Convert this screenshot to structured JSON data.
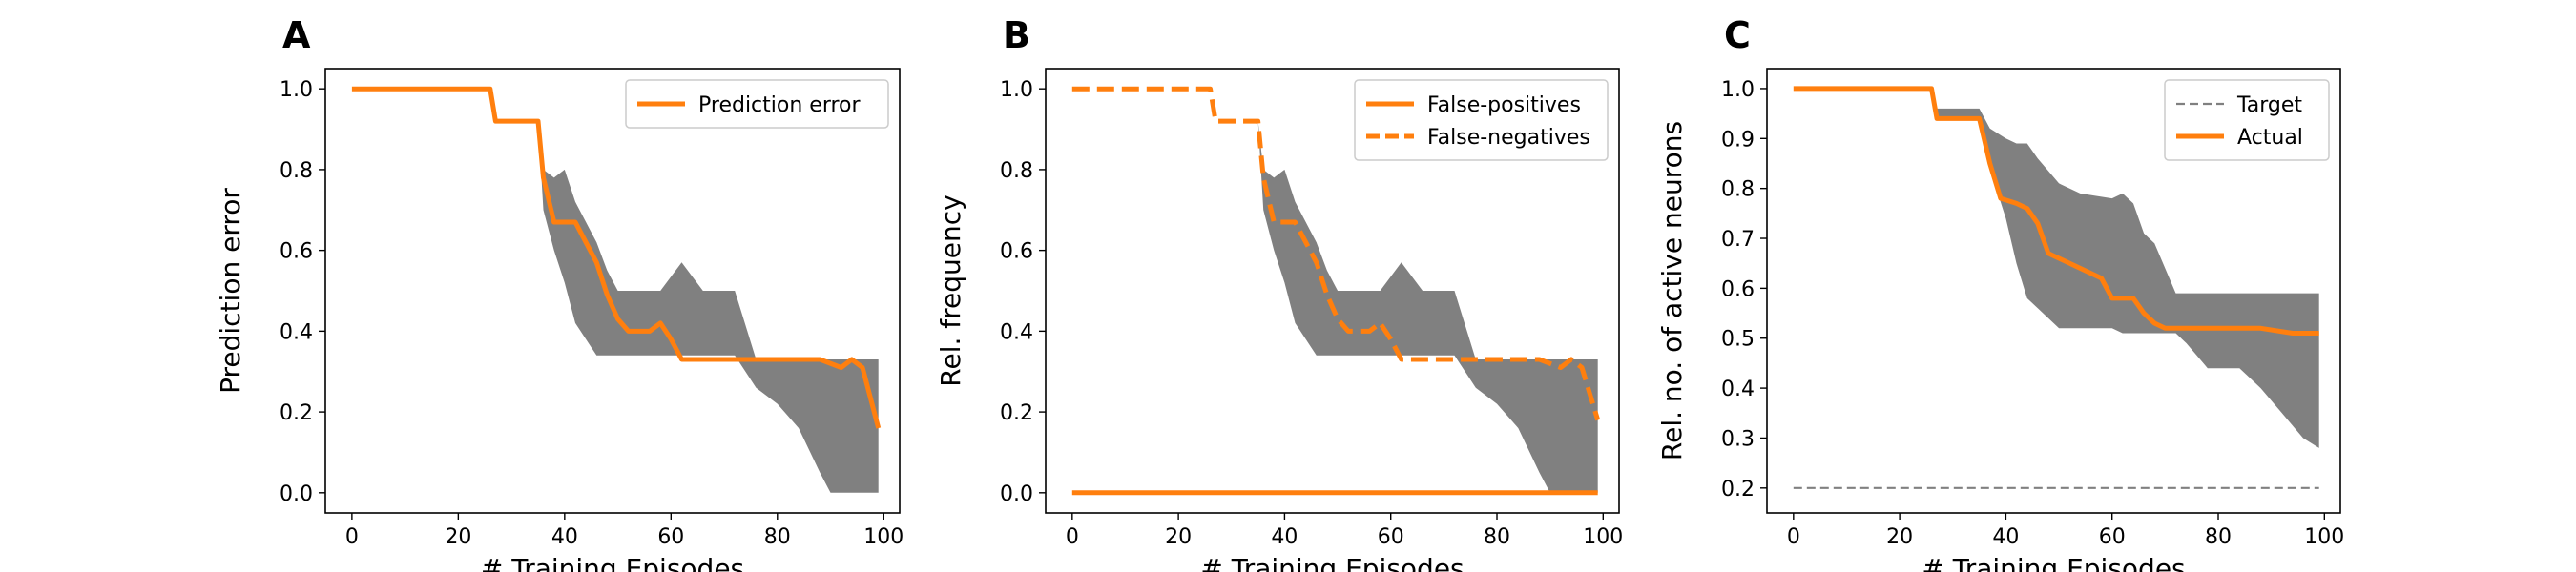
{
  "colors": {
    "line": "#ff7f0e",
    "band": "#808080",
    "target": "#808080"
  },
  "chart_data": [
    {
      "panel_label": "A",
      "type": "line",
      "xlabel": "# Training Episodes",
      "ylabel": "Prediction error",
      "xlim": [
        -5,
        103
      ],
      "ylim": [
        -0.05,
        1.05
      ],
      "xticks": [
        0,
        20,
        40,
        60,
        80,
        100
      ],
      "yticks": [
        0.0,
        0.2,
        0.4,
        0.6,
        0.8,
        1.0
      ],
      "ytick_labels": [
        "0.0",
        "0.2",
        "0.4",
        "0.6",
        "0.8",
        "1.0"
      ],
      "legend_position": "upper right",
      "band": {
        "x": [
          0,
          26,
          27,
          35,
          36,
          38,
          40,
          42,
          46,
          48,
          50,
          54,
          58,
          62,
          66,
          72,
          76,
          80,
          84,
          88,
          90,
          94,
          98,
          99
        ],
        "lower": [
          1.0,
          1.0,
          0.92,
          0.92,
          0.7,
          0.6,
          0.52,
          0.42,
          0.34,
          0.34,
          0.34,
          0.34,
          0.34,
          0.34,
          0.34,
          0.34,
          0.26,
          0.22,
          0.16,
          0.05,
          0.0,
          0.0,
          0.0,
          0.0
        ],
        "upper": [
          1.0,
          1.0,
          0.92,
          0.92,
          0.8,
          0.78,
          0.8,
          0.72,
          0.62,
          0.55,
          0.5,
          0.5,
          0.5,
          0.57,
          0.5,
          0.5,
          0.33,
          0.33,
          0.33,
          0.33,
          0.33,
          0.33,
          0.33,
          0.33
        ]
      },
      "series": [
        {
          "name": "Prediction error",
          "style": "solid",
          "x": [
            0,
            26,
            27,
            35,
            36,
            38,
            42,
            44,
            46,
            48,
            50,
            52,
            56,
            58,
            60,
            62,
            88,
            92,
            94,
            96,
            99
          ],
          "y": [
            1.0,
            1.0,
            0.92,
            0.92,
            0.78,
            0.67,
            0.67,
            0.62,
            0.57,
            0.49,
            0.43,
            0.4,
            0.4,
            0.42,
            0.38,
            0.33,
            0.33,
            0.31,
            0.33,
            0.31,
            0.16
          ]
        }
      ]
    },
    {
      "panel_label": "B",
      "type": "line",
      "xlabel": "# Training Episodes",
      "ylabel": "Rel. frequency",
      "xlim": [
        -5,
        103
      ],
      "ylim": [
        -0.05,
        1.05
      ],
      "xticks": [
        0,
        20,
        40,
        60,
        80,
        100
      ],
      "yticks": [
        0.0,
        0.2,
        0.4,
        0.6,
        0.8,
        1.0
      ],
      "ytick_labels": [
        "0.0",
        "0.2",
        "0.4",
        "0.6",
        "0.8",
        "1.0"
      ],
      "legend_position": "upper right",
      "band": {
        "x": [
          0,
          26,
          27,
          35,
          36,
          38,
          40,
          42,
          46,
          48,
          50,
          54,
          58,
          62,
          66,
          72,
          76,
          80,
          84,
          88,
          90,
          94,
          98,
          99
        ],
        "lower": [
          1.0,
          1.0,
          0.92,
          0.92,
          0.7,
          0.6,
          0.52,
          0.42,
          0.34,
          0.34,
          0.34,
          0.34,
          0.34,
          0.34,
          0.34,
          0.34,
          0.26,
          0.22,
          0.16,
          0.05,
          0.0,
          0.0,
          0.0,
          0.0
        ],
        "upper": [
          1.0,
          1.0,
          0.92,
          0.92,
          0.8,
          0.78,
          0.8,
          0.72,
          0.62,
          0.55,
          0.5,
          0.5,
          0.5,
          0.57,
          0.5,
          0.5,
          0.33,
          0.33,
          0.33,
          0.33,
          0.33,
          0.33,
          0.33,
          0.33
        ]
      },
      "series": [
        {
          "name": "False-positives",
          "style": "solid",
          "x": [
            0,
            99
          ],
          "y": [
            0.0,
            0.0
          ]
        },
        {
          "name": "False-negatives",
          "style": "dashed",
          "x": [
            0,
            26,
            27,
            35,
            36,
            38,
            42,
            44,
            46,
            48,
            50,
            52,
            56,
            58,
            60,
            62,
            88,
            92,
            94,
            96,
            99
          ],
          "y": [
            1.0,
            1.0,
            0.92,
            0.92,
            0.78,
            0.67,
            0.67,
            0.62,
            0.57,
            0.49,
            0.43,
            0.4,
            0.4,
            0.42,
            0.38,
            0.33,
            0.33,
            0.31,
            0.33,
            0.31,
            0.18
          ]
        }
      ]
    },
    {
      "panel_label": "C",
      "type": "line",
      "xlabel": "# Training Episodes",
      "ylabel": "Rel. no. of active neurons",
      "xlim": [
        -5,
        103
      ],
      "ylim": [
        0.15,
        1.04
      ],
      "xticks": [
        0,
        20,
        40,
        60,
        80,
        100
      ],
      "yticks": [
        0.2,
        0.3,
        0.4,
        0.5,
        0.6,
        0.7,
        0.8,
        0.9,
        1.0
      ],
      "ytick_labels": [
        "0.2",
        "0.3",
        "0.4",
        "0.5",
        "0.6",
        "0.7",
        "0.8",
        "0.9",
        "1.0"
      ],
      "legend_position": "upper right",
      "band": {
        "x": [
          0,
          26,
          27,
          35,
          37,
          40,
          42,
          44,
          46,
          50,
          54,
          60,
          62,
          64,
          66,
          68,
          72,
          74,
          78,
          80,
          84,
          86,
          88,
          92,
          96,
          99
        ],
        "lower": [
          1.0,
          1.0,
          0.94,
          0.94,
          0.84,
          0.74,
          0.65,
          0.58,
          0.56,
          0.52,
          0.52,
          0.52,
          0.51,
          0.51,
          0.51,
          0.51,
          0.51,
          0.49,
          0.44,
          0.44,
          0.44,
          0.42,
          0.4,
          0.35,
          0.3,
          0.28
        ],
        "upper": [
          1.0,
          1.0,
          0.96,
          0.96,
          0.92,
          0.9,
          0.89,
          0.89,
          0.86,
          0.81,
          0.79,
          0.78,
          0.79,
          0.77,
          0.71,
          0.69,
          0.59,
          0.59,
          0.59,
          0.59,
          0.59,
          0.59,
          0.59,
          0.59,
          0.59,
          0.59
        ]
      },
      "series": [
        {
          "name": "Target",
          "style": "thin-dashed",
          "x": [
            0,
            99
          ],
          "y": [
            0.2,
            0.2
          ]
        },
        {
          "name": "Actual",
          "style": "solid",
          "x": [
            0,
            26,
            27,
            35,
            37,
            39,
            42,
            44,
            46,
            48,
            50,
            54,
            58,
            60,
            64,
            66,
            68,
            70,
            74,
            80,
            88,
            94,
            99
          ],
          "y": [
            1.0,
            1.0,
            0.94,
            0.94,
            0.85,
            0.78,
            0.77,
            0.76,
            0.73,
            0.67,
            0.66,
            0.64,
            0.62,
            0.58,
            0.58,
            0.55,
            0.53,
            0.52,
            0.52,
            0.52,
            0.52,
            0.51,
            0.51
          ]
        }
      ]
    }
  ]
}
